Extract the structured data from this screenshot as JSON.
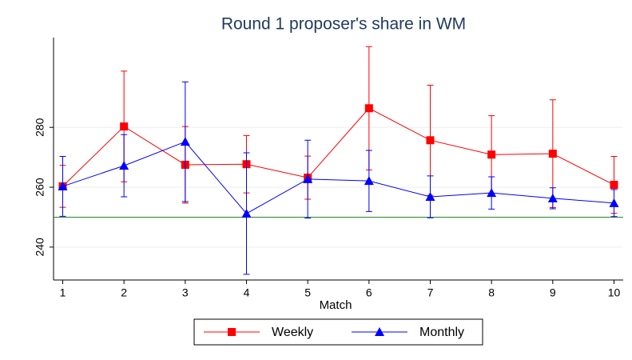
{
  "chart_data": {
    "type": "line",
    "title": "Round 1 proposer's share in WM",
    "xlabel": "Match",
    "x": [
      1,
      2,
      3,
      4,
      5,
      6,
      7,
      8,
      9,
      10
    ],
    "series": [
      {
        "name": "Weekly",
        "color": "#ff0000",
        "marker": "square",
        "values": [
          260.3,
          280.3,
          267.5,
          267.7,
          263.2,
          286.4,
          275.7,
          270.9,
          271.2,
          260.8
        ],
        "errors": [
          7,
          18.5,
          12.8,
          9.6,
          7.2,
          20.6,
          18.4,
          13,
          18,
          9.5
        ]
      },
      {
        "name": "Monthly",
        "color": "#0000ff",
        "marker": "triangle",
        "values": [
          260.3,
          267.2,
          275.2,
          251.2,
          262.7,
          262.1,
          256.8,
          258.1,
          256.3,
          254.7
        ],
        "errors": [
          10,
          10.4,
          20,
          20.3,
          13,
          10.2,
          7,
          5.4,
          3.5,
          4.5
        ]
      }
    ],
    "xlim": [
      0.85,
      10.15
    ],
    "xticks": [
      1,
      2,
      3,
      4,
      5,
      6,
      7,
      8,
      9,
      10
    ],
    "ylim": [
      229,
      310
    ],
    "yticks": [
      240,
      260,
      280
    ],
    "hline": 250,
    "hline_color": "#228b22",
    "grid": true,
    "legend": "bottom"
  }
}
